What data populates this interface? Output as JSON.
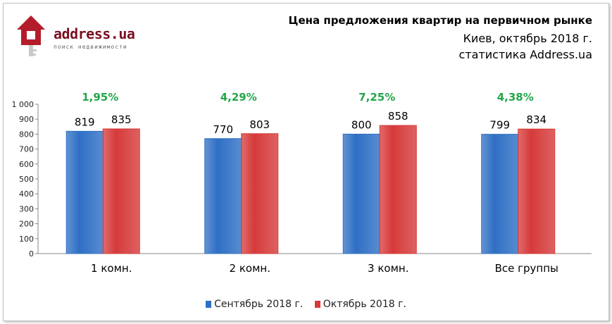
{
  "logo": {
    "text": "address.ua",
    "tagline": "поиск недвижимости"
  },
  "header": {
    "title": "Цена предложения квартир на первичном рынке",
    "subtitle1": "Киев, октябрь 2018 г.",
    "subtitle2": "статистика Address.ua"
  },
  "colors": {
    "series1": "#2f6fc4",
    "series2": "#d63a3a",
    "pct": "#22a64a",
    "axis": "#888888"
  },
  "chart_data": {
    "type": "bar",
    "categories": [
      "1 комн.",
      "2 комн.",
      "3 комн.",
      "Все группы"
    ],
    "series": [
      {
        "name": "Сентябрь 2018 г.",
        "values": [
          819,
          770,
          800,
          799
        ]
      },
      {
        "name": "Октябрь 2018 г.",
        "values": [
          835,
          803,
          858,
          834
        ]
      }
    ],
    "annotations": [
      "1,95%",
      "4,29%",
      "7,25%",
      "4,38%"
    ],
    "yticks": [
      "0",
      "100",
      "200",
      "300",
      "400",
      "500",
      "600",
      "700",
      "800",
      "900",
      "1 000"
    ],
    "ylim": [
      0,
      1000
    ],
    "legend": "bottom",
    "grid": false
  }
}
